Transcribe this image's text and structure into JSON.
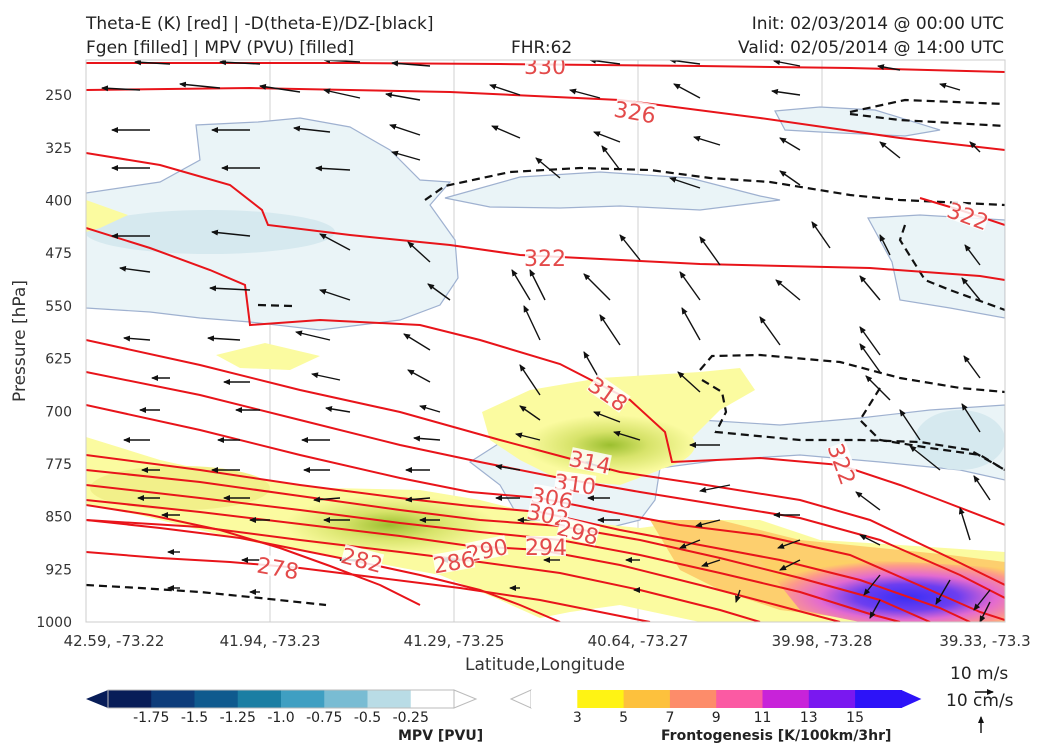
{
  "header": {
    "line1_left": "Theta-E (K) [red] | -D(theta-E)/DZ-[black]",
    "line2_left": "Fgen [filled] | MPV (PVU) [filled]",
    "fhr": "FHR:62",
    "init": "Init: 02/03/2014 @ 00:00 UTC",
    "valid": "Valid: 02/05/2014 @ 14:00 UTC"
  },
  "chart_data": {
    "type": "cross-section",
    "ylabel": "Pressure [hPa]",
    "xlabel": "Latitude,Longitude",
    "y_ticks": [
      "250",
      "325",
      "400",
      "475",
      "550",
      "625",
      "700",
      "775",
      "850",
      "925",
      "1000"
    ],
    "x_ticks": [
      "42.59, -73.22",
      "41.94, -73.23",
      "41.29, -73.25",
      "40.64, -73.27",
      "39.98, -73.28",
      "39.33, -73.3"
    ],
    "ylim": [
      1000,
      200
    ],
    "theta_e_labels": [
      "330",
      "326",
      "322",
      "322",
      "318",
      "322",
      "314",
      "310",
      "306",
      "302",
      "298",
      "294",
      "290",
      "286",
      "282",
      "278"
    ],
    "mpv_colorbar": {
      "title": "MPV [PVU]",
      "ticks": [
        "-1.75",
        "-1.5",
        "-1.25",
        "-1.0",
        "-0.75",
        "-0.5",
        "-0.25"
      ],
      "colors": [
        "#081d58",
        "#0d3c7a",
        "#0f5a8e",
        "#1b7ea3",
        "#3f9fc2",
        "#79bcd3",
        "#b9dce6",
        "#ffffff"
      ]
    },
    "fgen_colorbar": {
      "title": "Frontogenesis [K/100km/3hr]",
      "ticks": [
        "3",
        "5",
        "7",
        "9",
        "11",
        "13",
        "15"
      ],
      "colors": [
        "#ffffff",
        "#fff314",
        "#fdc13d",
        "#fd8c6a",
        "#fb5aa3",
        "#c823d9",
        "#7a18f0",
        "#2d13f8"
      ]
    },
    "wind_key": {
      "horizontal": "10 m/s",
      "vertical": "10 cm/s"
    }
  }
}
